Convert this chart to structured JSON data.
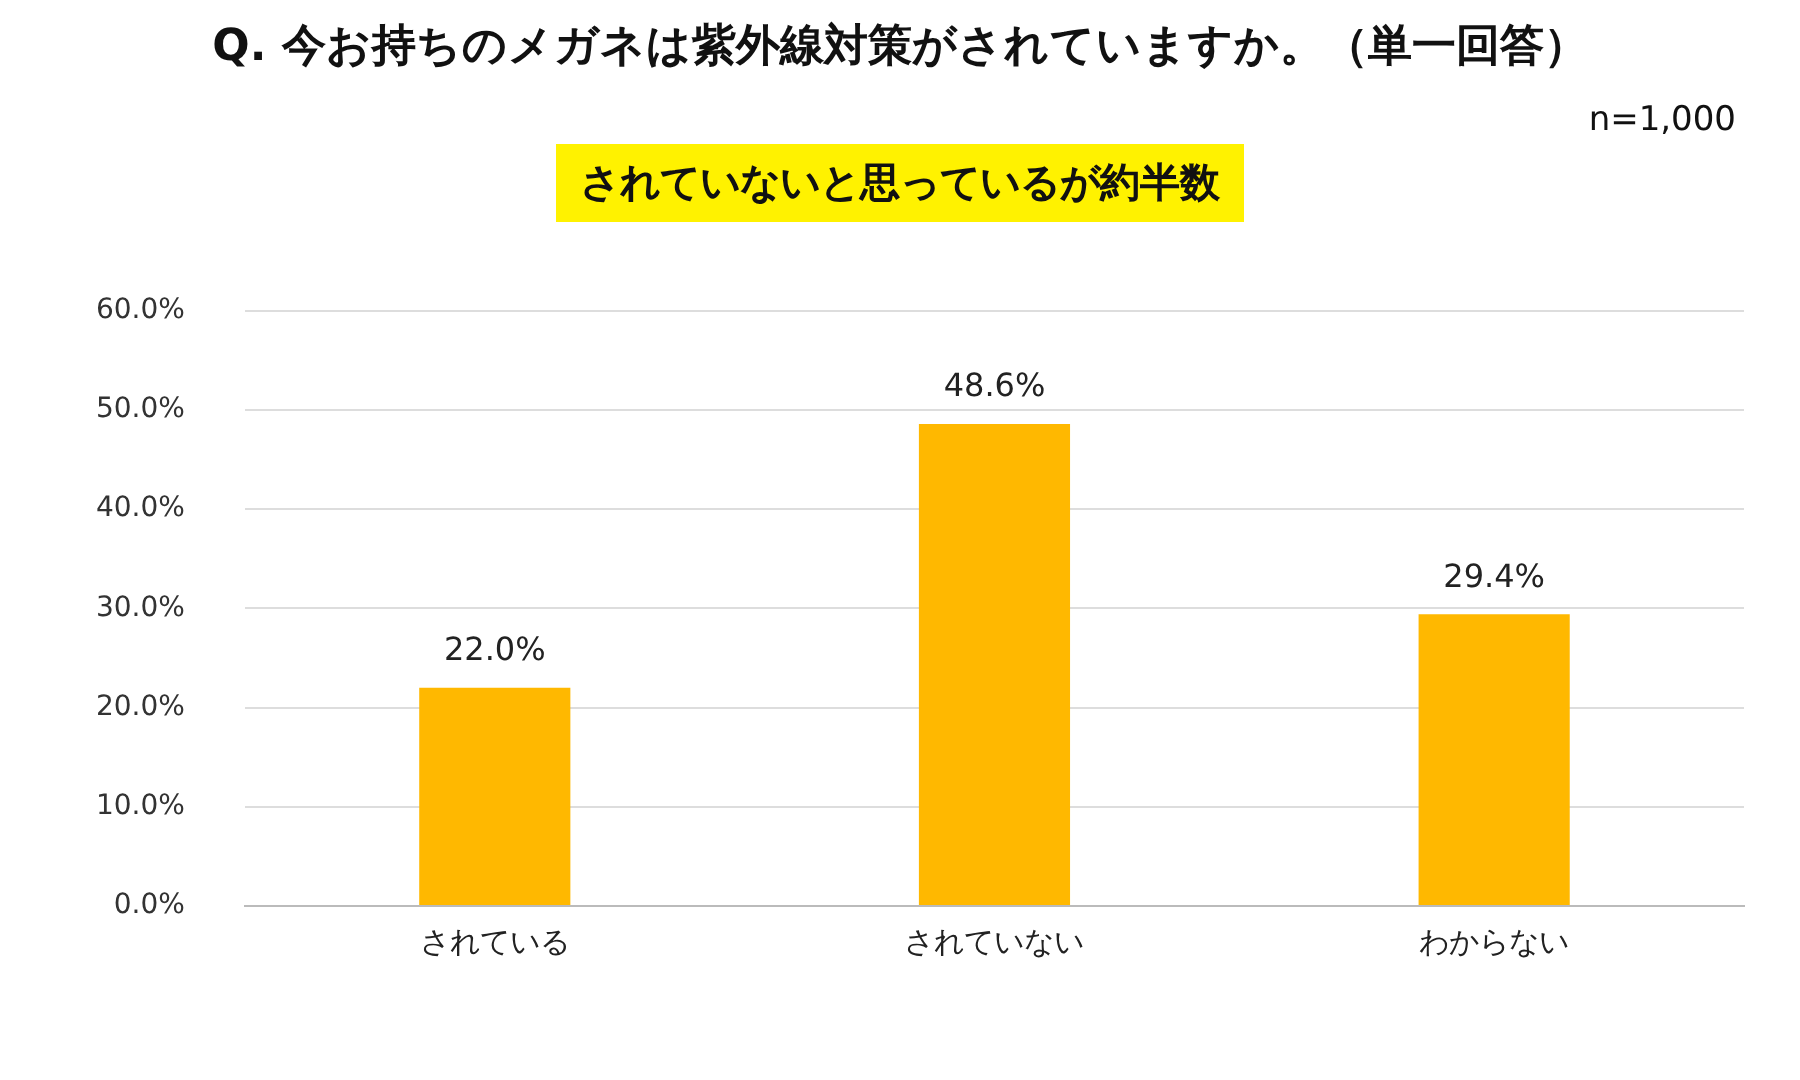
{
  "chart_data": {
    "type": "bar",
    "title": "Q. 今お持ちのメガネは紫外線対策がされていますか。（単一回答）",
    "subtitle": "されていないと思っているが約半数",
    "annotations": [
      "n=1,000"
    ],
    "categories": [
      "されている",
      "されていない",
      "わからない"
    ],
    "values": [
      22.0,
      48.6,
      29.4
    ],
    "value_labels": [
      "22.0%",
      "48.6%",
      "29.4%"
    ],
    "color": "#ffb800",
    "ylim": [
      0,
      60
    ],
    "yticks": [
      {
        "value": 0,
        "label": "0.0%"
      },
      {
        "value": 10,
        "label": "10.0%"
      },
      {
        "value": 20,
        "label": "20.0%"
      },
      {
        "value": 30,
        "label": "30.0%"
      },
      {
        "value": 40,
        "label": "40.0%"
      },
      {
        "value": 50,
        "label": "50.0%"
      },
      {
        "value": 60,
        "label": "60.0%"
      }
    ],
    "grid": "y",
    "legend": false
  }
}
